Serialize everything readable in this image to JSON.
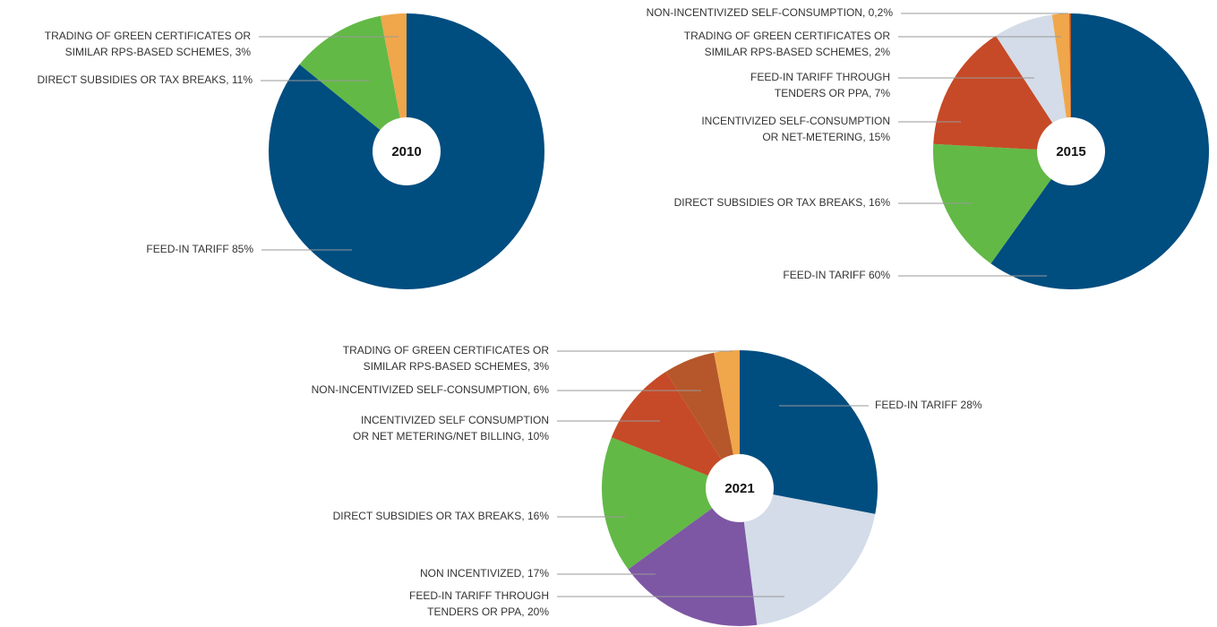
{
  "chart_data": [
    {
      "type": "pie",
      "title": "2010",
      "labels": [
        [
          "FEED-IN TARIFF 85%"
        ],
        [
          "DIRECT SUBSIDIES OR TAX BREAKS, 11%"
        ],
        [
          "TRADING OF GREEN CERTIFICATES OR",
          "SIMILAR RPS-BASED SCHEMES, 3%"
        ]
      ],
      "values": [
        85,
        11,
        3
      ],
      "colors": [
        "#004d80",
        "#62b946",
        "#f0a64b"
      ]
    },
    {
      "type": "pie",
      "title": "2015",
      "labels": [
        [
          "FEED-IN TARIFF 60%"
        ],
        [
          "DIRECT SUBSIDIES OR TAX BREAKS, 16%"
        ],
        [
          "INCENTIVIZED SELF-CONSUMPTION",
          "OR NET-METERING, 15%"
        ],
        [
          "FEED-IN TARIFF THROUGH",
          "TENDERS OR PPA, 7%"
        ],
        [
          "TRADING OF GREEN CERTIFICATES OR",
          "SIMILAR RPS-BASED SCHEMES, 2%"
        ],
        [
          "NON-INCENTIVIZED SELF-CONSUMPTION, 0,2%"
        ]
      ],
      "values": [
        60,
        16,
        15,
        7,
        2,
        0.2
      ],
      "colors": [
        "#004d80",
        "#62b946",
        "#c64a27",
        "#d3dce8",
        "#f0a64b",
        "#b5572a"
      ]
    },
    {
      "type": "pie",
      "title": "2021",
      "labels": [
        [
          "FEED-IN TARIFF 28%"
        ],
        [
          "FEED-IN TARIFF THROUGH",
          "TENDERS OR PPA, 20%"
        ],
        [
          "NON INCENTIVIZED, 17%"
        ],
        [
          "DIRECT SUBSIDIES OR TAX BREAKS, 16%"
        ],
        [
          "INCENTIVIZED SELF CONSUMPTION",
          "OR NET METERING/NET BILLING, 10%"
        ],
        [
          "NON-INCENTIVIZED SELF-CONSUMPTION, 6%"
        ],
        [
          "TRADING OF GREEN CERTIFICATES OR",
          "SIMILAR RPS-BASED SCHEMES, 3%"
        ]
      ],
      "values": [
        28,
        20,
        17,
        16,
        10,
        6,
        3
      ],
      "colors": [
        "#004d80",
        "#d3dce8",
        "#7d57a4",
        "#62b946",
        "#c64a27",
        "#b5572a",
        "#f0a64b"
      ]
    }
  ]
}
